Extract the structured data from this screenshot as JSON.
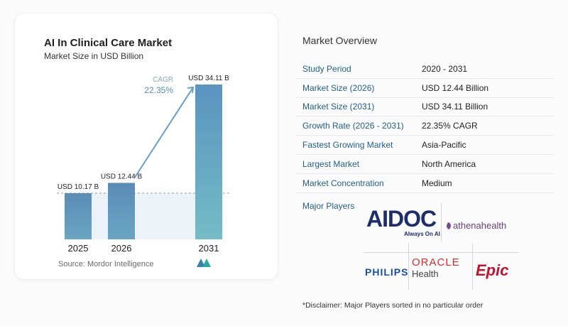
{
  "chart_data": {
    "type": "bar",
    "title": "AI In Clinical Care Market",
    "subtitle": "Market Size in USD Billion",
    "categories": [
      "2025",
      "2026",
      "2031"
    ],
    "values": [
      10.17,
      12.44,
      34.11
    ],
    "value_labels": [
      "USD 10.17 B",
      "USD 12.44 B",
      "USD 34.11 B"
    ],
    "cagr_label": "CAGR",
    "cagr_value": "22.35%",
    "colors": {
      "bar_small": "#5a8fb8",
      "bar_large": "#5f9ec0",
      "shade": "#dce7f0",
      "arrow": "#6a9ec4",
      "baseline": "#8aa0b2"
    }
  },
  "source": "Source:  Mordor Intelligence",
  "overview": {
    "title": "Market Overview",
    "rows": [
      {
        "label": "Study Period",
        "value": "2020 - 2031"
      },
      {
        "label": "Market Size (2026)",
        "value": "USD 12.44 Billion"
      },
      {
        "label": "Market Size (2031)",
        "value": "USD 34.11 Billion"
      },
      {
        "label": "Growth Rate (2026 - 2031)",
        "value": "22.35% CAGR"
      },
      {
        "label": "Fastest Growing Market",
        "value": "Asia-Pacific"
      },
      {
        "label": "Largest Market",
        "value": "North America"
      },
      {
        "label": "Market Concentration",
        "value": "Medium"
      }
    ],
    "players_label": "Major Players"
  },
  "players": {
    "aidoc": "AIDOC",
    "aidoc_tag": "Always On AI",
    "athena": "athenahealth",
    "philips": "PHILIPS",
    "oracle": "ORACLE",
    "oracle_sub": "Health",
    "epic": "Epic"
  },
  "disclaimer": "*Disclaimer: Major Players sorted in no particular order"
}
